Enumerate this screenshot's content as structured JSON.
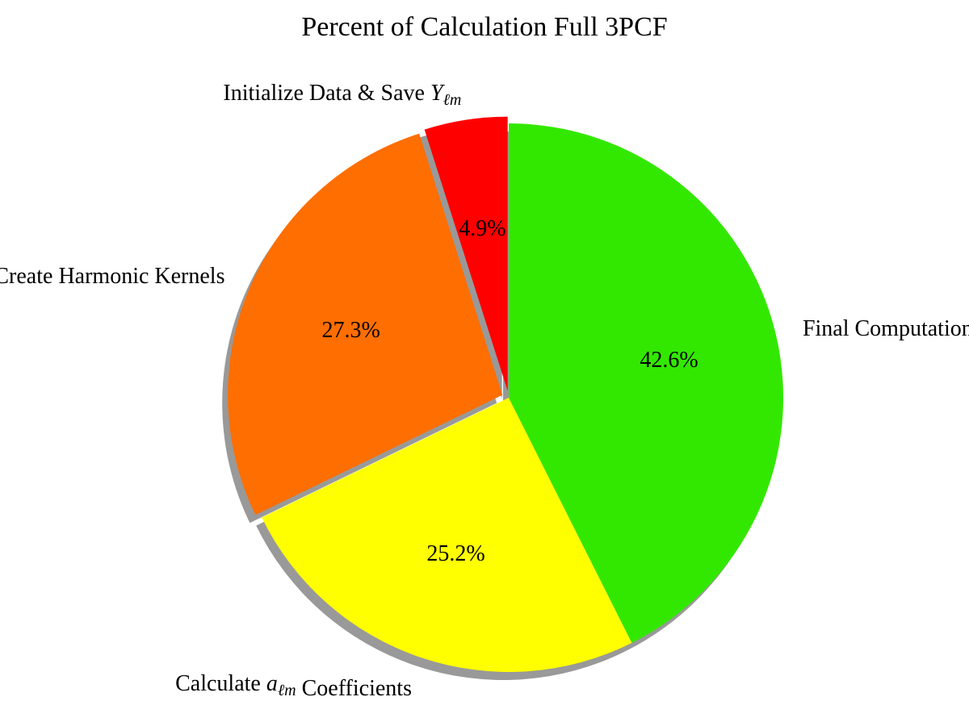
{
  "chart_data": {
    "type": "pie",
    "title": "Percent of Calculation Full 3PCF",
    "start_angle_deg": 90,
    "direction": "counterclockwise",
    "shadow": true,
    "slices": [
      {
        "label_parts": [
          {
            "text": "Initialize Data & Save ",
            "style": "normal"
          },
          {
            "text": "Y",
            "style": "math"
          },
          {
            "text": "ℓm",
            "style": "math-sub"
          }
        ],
        "value": 4.9,
        "pct_label": "4.9%",
        "color": "#ff0000",
        "exploded": true
      },
      {
        "label_parts": [
          {
            "text": "Create Harmonic Kernels",
            "style": "normal"
          }
        ],
        "value": 27.3,
        "pct_label": "27.3%",
        "color": "#ff6e00",
        "exploded": true
      },
      {
        "label_parts": [
          {
            "text": "Calculate ",
            "style": "normal"
          },
          {
            "text": "a",
            "style": "math"
          },
          {
            "text": "ℓm",
            "style": "math-sub"
          },
          {
            "text": " Coefficients",
            "style": "normal"
          }
        ],
        "value": 25.2,
        "pct_label": "25.2%",
        "color": "#ffff00",
        "exploded": false
      },
      {
        "label_parts": [
          {
            "text": "Final Computation",
            "style": "normal"
          }
        ],
        "value": 42.6,
        "pct_label": "42.6%",
        "color": "#33e800",
        "exploded": false
      }
    ]
  }
}
